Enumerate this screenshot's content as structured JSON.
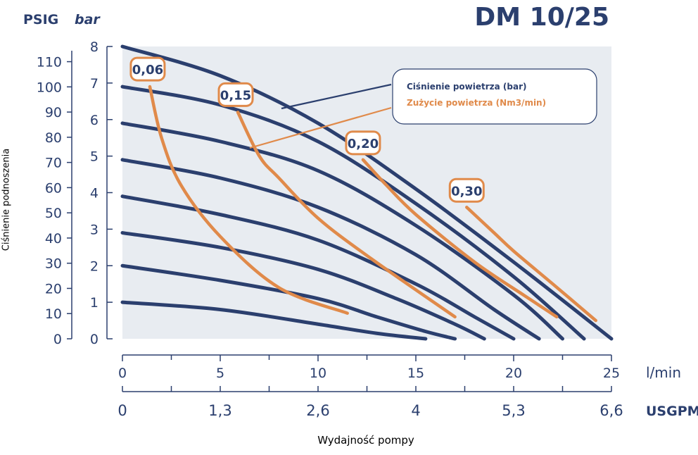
{
  "chart_data": {
    "type": "line",
    "title": "DM 10/25",
    "xlabel": "Wydajność pompy",
    "ylabel": "Ciśnienie podnoszenia",
    "x_units": [
      "l/min",
      "USGPM"
    ],
    "y_units": [
      "PSIG",
      "bar"
    ],
    "xlim": [
      0,
      25
    ],
    "ylim_bar": [
      0,
      8
    ],
    "x_ticks_lmin": [
      "0",
      "5",
      "10",
      "15",
      "20",
      "25"
    ],
    "x_ticks_usgpm": [
      "0",
      "1,3",
      "2,6",
      "4",
      "5,3",
      "6,6"
    ],
    "y_ticks_psig": [
      "0",
      "10",
      "20",
      "30",
      "40",
      "50",
      "60",
      "70",
      "80",
      "90",
      "100",
      "110"
    ],
    "y_ticks_bar": [
      "0",
      "1",
      "2",
      "3",
      "4",
      "5",
      "6",
      "7",
      "8"
    ],
    "legend": {
      "position": "top-right",
      "entries": [
        {
          "label": "Ciśnienie powietrza (bar)",
          "color": "#2b3f6e"
        },
        {
          "label": "Zużycie powietrza (Nm3/min)",
          "color": "#e08a4a"
        }
      ]
    },
    "pressure_series": [
      {
        "points": [
          [
            0,
            8.0
          ],
          [
            5,
            7.2
          ],
          [
            10,
            5.9
          ],
          [
            15,
            4.1
          ],
          [
            20,
            2.1
          ],
          [
            25,
            0
          ]
        ]
      },
      {
        "points": [
          [
            0,
            6.9
          ],
          [
            5,
            6.4
          ],
          [
            10,
            5.4
          ],
          [
            15,
            3.7
          ],
          [
            20,
            1.7
          ],
          [
            23.6,
            0
          ]
        ]
      },
      {
        "points": [
          [
            0,
            5.9
          ],
          [
            5,
            5.4
          ],
          [
            10,
            4.6
          ],
          [
            15,
            3.1
          ],
          [
            20,
            1.2
          ],
          [
            22.5,
            0
          ]
        ]
      },
      {
        "points": [
          [
            0,
            4.9
          ],
          [
            5,
            4.4
          ],
          [
            10,
            3.6
          ],
          [
            15,
            2.3
          ],
          [
            19,
            0.8
          ],
          [
            21.3,
            0
          ]
        ]
      },
      {
        "points": [
          [
            0,
            3.9
          ],
          [
            5,
            3.4
          ],
          [
            10,
            2.7
          ],
          [
            15,
            1.5
          ],
          [
            18,
            0.6
          ],
          [
            20,
            0
          ]
        ]
      },
      {
        "points": [
          [
            0,
            2.9
          ],
          [
            5,
            2.5
          ],
          [
            10,
            1.9
          ],
          [
            14,
            1.1
          ],
          [
            17,
            0.4
          ],
          [
            18.5,
            0
          ]
        ]
      },
      {
        "points": [
          [
            0,
            2.0
          ],
          [
            5,
            1.6
          ],
          [
            10,
            1.1
          ],
          [
            13,
            0.6
          ],
          [
            15.5,
            0.2
          ],
          [
            17,
            0
          ]
        ]
      },
      {
        "points": [
          [
            0,
            1.0
          ],
          [
            5,
            0.8
          ],
          [
            10,
            0.4
          ],
          [
            13,
            0.15
          ],
          [
            15.5,
            0
          ]
        ]
      }
    ],
    "air_consumption_series": [
      {
        "label": "0,06",
        "points": [
          [
            1.4,
            6.9
          ],
          [
            2,
            5.5
          ],
          [
            3,
            4.2
          ],
          [
            5,
            2.8
          ],
          [
            8,
            1.4
          ],
          [
            11.5,
            0.7
          ]
        ]
      },
      {
        "label": "0,15",
        "points": [
          [
            5.9,
            6.2
          ],
          [
            7,
            5.0
          ],
          [
            8,
            4.4
          ],
          [
            10,
            3.3
          ],
          [
            12.7,
            2.2
          ],
          [
            17,
            0.6
          ]
        ]
      },
      {
        "label": "0,20",
        "points": [
          [
            12.3,
            4.9
          ],
          [
            13.5,
            4.2
          ],
          [
            15,
            3.4
          ],
          [
            18,
            2.1
          ],
          [
            20.5,
            1.2
          ],
          [
            22.2,
            0.6
          ]
        ]
      },
      {
        "label": "0,30",
        "points": [
          [
            17.6,
            3.6
          ],
          [
            19,
            2.9
          ],
          [
            20,
            2.4
          ],
          [
            22,
            1.5
          ],
          [
            24.2,
            0.5
          ]
        ]
      }
    ]
  }
}
